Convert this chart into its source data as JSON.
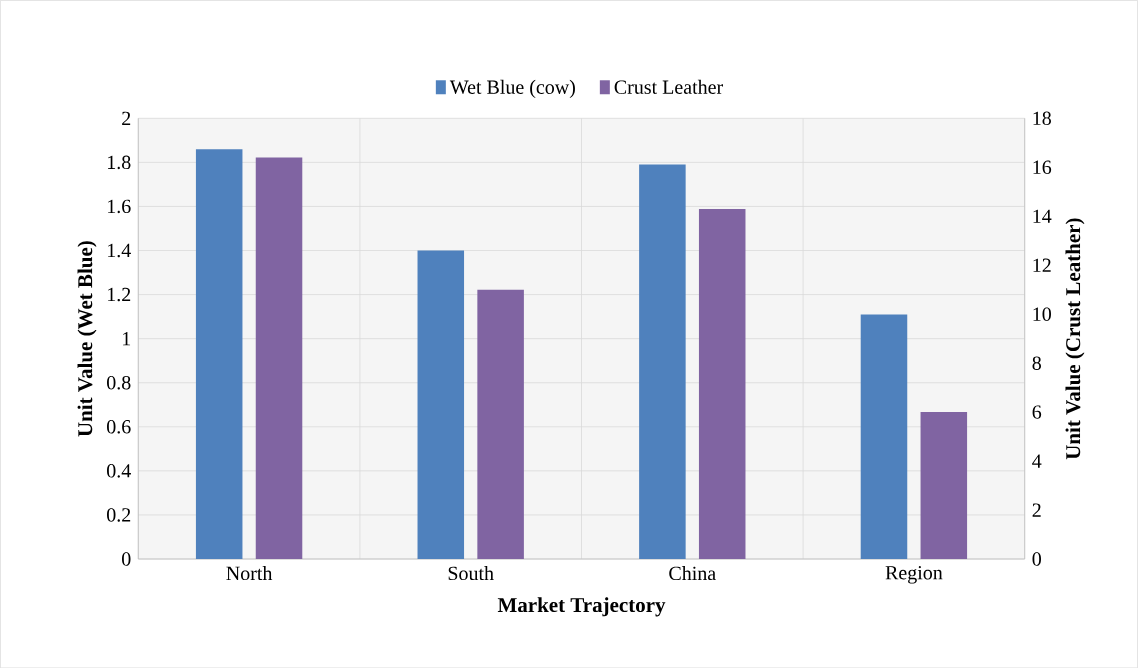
{
  "chart_data": {
    "type": "bar",
    "xlabel": "Market Trajectory",
    "ylabel": "Unit Value (Wet Blue)",
    "y2label": "Unit Value (Crust Leather)",
    "categories": [
      "North",
      "South",
      "China",
      "Region"
    ],
    "series": [
      {
        "name": "Wet Blue (cow)",
        "color": "#4f81bd",
        "values": [
          1.86,
          1.4,
          1.79,
          1.11
        ]
      },
      {
        "name": "Crust Leather",
        "color": "#8064a2",
        "values": [
          16.4,
          11.0,
          14.3,
          6.0
        ],
        "axis": "y2"
      }
    ],
    "ylim": [
      0,
      2
    ],
    "yticks": [
      0,
      {
        "value": 0.2,
        "label": "0.2"
      },
      {
        "value": 0.4,
        "label": "0.4"
      },
      {
        "value": 0.6,
        "label": "0.6"
      },
      {
        "value": 0.8,
        "label": "0.8"
      },
      1,
      {
        "value": 1.2,
        "label": "1.2"
      },
      {
        "value": 1.4,
        "label": "1.4"
      },
      {
        "value": 1.6,
        "label": "1.6"
      },
      {
        "value": 1.8,
        "label": "1.8"
      },
      2
    ],
    "y2lim": [
      0,
      18
    ],
    "y2ticks": [
      0,
      2,
      4,
      6,
      8,
      10,
      12,
      14,
      16,
      18
    ],
    "grid": true,
    "legend": "top"
  }
}
